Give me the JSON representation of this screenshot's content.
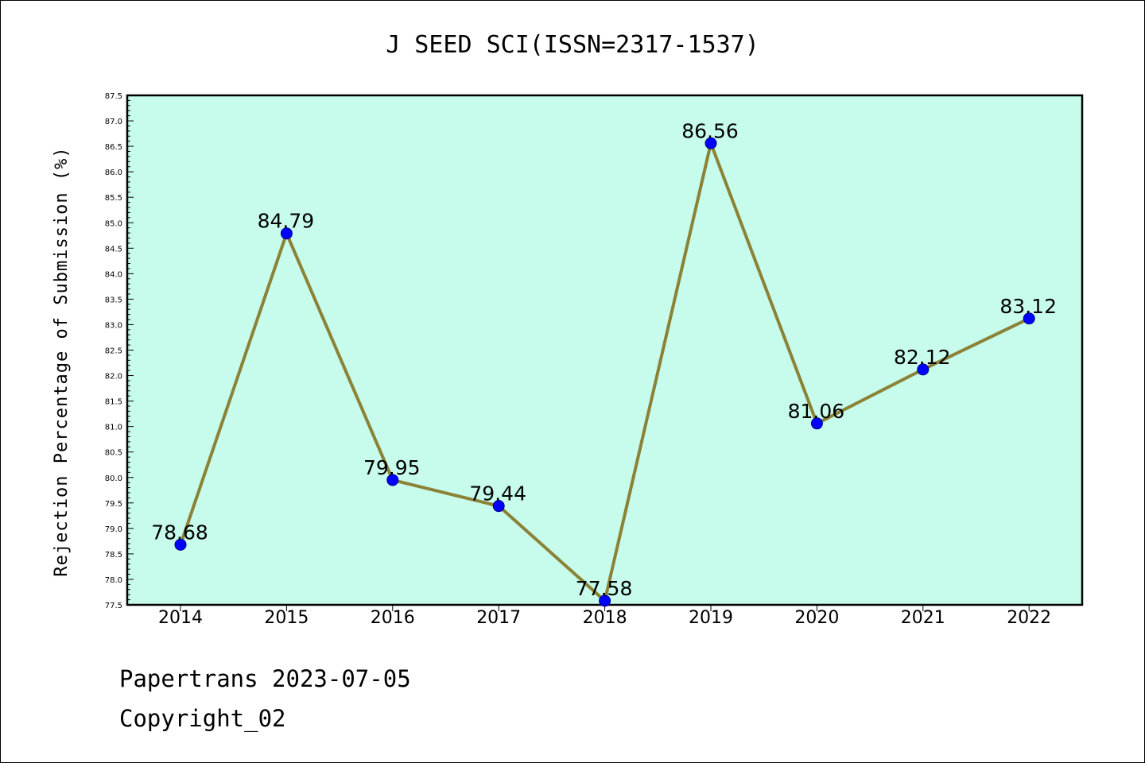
{
  "chart_data": {
    "type": "line",
    "title": "J SEED SCI(ISSN=2317-1537)",
    "xlabel": "",
    "ylabel": "Rejection Percentage of Submission (%)",
    "categories": [
      "2014",
      "2015",
      "2016",
      "2017",
      "2018",
      "2019",
      "2020",
      "2021",
      "2022"
    ],
    "values": [
      78.68,
      84.79,
      79.95,
      79.44,
      77.58,
      86.56,
      81.06,
      82.12,
      83.12
    ],
    "data_labels": [
      "78.68",
      "84.79",
      "79.95",
      "79.44",
      "77.58",
      "86.56",
      "81.06",
      "82.12",
      "83.12"
    ],
    "ylim": [
      77.5,
      87.5
    ],
    "yticks": [
      "77.5",
      "78.0",
      "78.5",
      "79.0",
      "79.5",
      "80.0",
      "80.5",
      "81.0",
      "81.5",
      "82.0",
      "82.5",
      "83.0",
      "83.5",
      "84.0",
      "84.5",
      "85.0",
      "85.5",
      "86.0",
      "86.5",
      "87.0",
      "87.5"
    ],
    "grid": false,
    "colors": {
      "plot_background": "#c7fcec",
      "line": "#8b8236",
      "marker": "#0000ff"
    }
  },
  "footer": {
    "line1": "Papertrans 2023-07-05",
    "line2": "Copyright_02"
  }
}
